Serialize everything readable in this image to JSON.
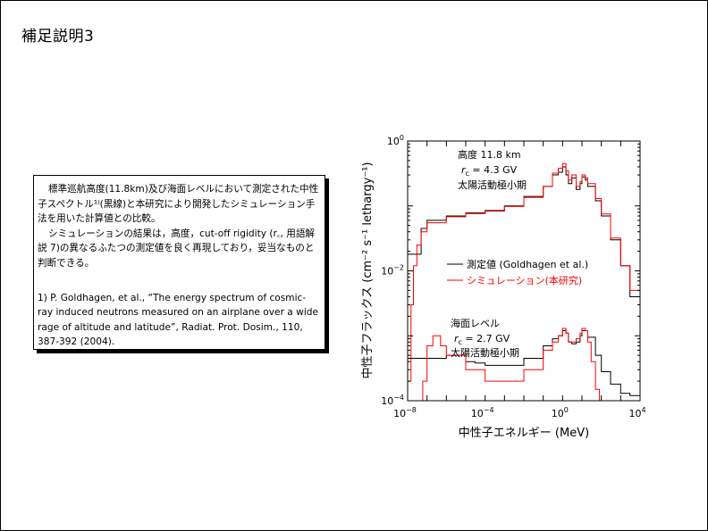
{
  "slide": {
    "title": "補足説明3"
  },
  "note": {
    "paragraph1": "標準巡航高度(11.8km)及び海面レベルにおいて測定された中性子スペクトル¹⁾(黒線)と本研究により開発したシミュレーション手法を用いた計算値との比較。",
    "paragraph2": "シミュレーションの結果は，高度，cut-off rigidity (r꜀, 用語解説 7)の異なるふたつの測定値を良く再現しており，妥当なものと判断できる。",
    "reference": "1) P. Goldhagen, et al., “The energy spectrum of cosmic-ray induced neutrons measured on an airplane over a wide rage of altitude and latitude”,  Radiat. Prot. Dosim., 110, 387-392 (2004)."
  },
  "chart_data": {
    "type": "line",
    "x_scale": "log",
    "y_scale": "log",
    "xlim": [
      1e-08,
      10000.0
    ],
    "ylim": [
      0.0001,
      1
    ],
    "xlabel": "中性子エネルギー (MeV)",
    "ylabel": "中性子フラックス (cm⁻² s⁻¹ lethargy⁻¹)",
    "x_ticks": [
      {
        "base": "10",
        "exp": "−8",
        "value": 1e-08
      },
      {
        "base": "10",
        "exp": "−4",
        "value": 0.0001
      },
      {
        "base": "10",
        "exp": "0",
        "value": 1
      },
      {
        "base": "10",
        "exp": "4",
        "value": 10000.0
      }
    ],
    "y_ticks": [
      {
        "base": "10",
        "exp": "−4",
        "value": 0.0001
      },
      {
        "base": "10",
        "exp": "−2",
        "value": 0.01
      },
      {
        "base": "10",
        "exp": "0",
        "value": 1
      }
    ],
    "legend": [
      {
        "label": "測定値 (Goldhagen et al.)",
        "color": "#000000"
      },
      {
        "label": "シミュレーション(本研究)",
        "color": "#ff0000"
      }
    ],
    "annotations": {
      "high": {
        "line1": "高度 11.8 km",
        "rc_symbol": "r",
        "rc_sub": "c",
        "rc_value": " = 4.3 GV",
        "line3": "太陽活動極小期"
      },
      "sea": {
        "line1": "海面レベル",
        "rc_symbol": "r",
        "rc_sub": "c",
        "rc_value": " = 2.7 GV",
        "line3": "太陽活動極小期"
      }
    },
    "series": [
      {
        "name": "測定値 (Goldhagen et al.)",
        "color": "#000000",
        "x": [
          1e-08,
          3e-08,
          5e-08,
          1e-07,
          1e-06,
          1e-05,
          0.0001,
          0.001,
          0.01,
          0.1,
          0.3,
          0.6,
          1,
          1.5,
          2,
          3,
          5,
          8,
          10,
          15,
          20,
          50,
          100,
          300,
          1000,
          3000,
          10000.0
        ],
        "y": [
          0.018,
          0.018,
          0.045,
          0.06,
          0.07,
          0.078,
          0.085,
          0.1,
          0.14,
          0.2,
          0.3,
          0.33,
          0.4,
          0.3,
          0.22,
          0.27,
          0.18,
          0.22,
          0.28,
          0.25,
          0.2,
          0.12,
          0.07,
          0.03,
          0.012,
          0.004,
          0.0015
        ]
      },
      {
        "name": "シミュレーション(本研究)",
        "color": "#ff0000",
        "x": [
          1e-08,
          1.5e-08,
          2e-08,
          3e-08,
          5e-08,
          1e-07,
          1e-06,
          1e-05,
          0.0001,
          0.001,
          0.01,
          0.1,
          0.3,
          0.6,
          1,
          1.5,
          2,
          3,
          5,
          8,
          10,
          15,
          20,
          50,
          100,
          300,
          1000,
          3000,
          10000.0
        ],
        "y": [
          0.0002,
          0.003,
          0.012,
          0.025,
          0.04,
          0.055,
          0.068,
          0.076,
          0.083,
          0.098,
          0.135,
          0.2,
          0.32,
          0.38,
          0.45,
          0.35,
          0.25,
          0.3,
          0.2,
          0.24,
          0.3,
          0.27,
          0.22,
          0.13,
          0.075,
          0.032,
          0.012,
          0.005,
          0.0018
        ]
      },
      {
        "name": "測定値 (Goldhagen et al.)",
        "color": "#000000",
        "x": [
          1e-08,
          1e-07,
          1e-06,
          1e-05,
          3e-05,
          0.0001,
          0.001,
          0.01,
          0.1,
          0.3,
          0.6,
          1,
          1.5,
          2,
          3,
          5,
          8,
          10,
          15,
          20,
          50,
          100,
          300,
          1000,
          3000,
          10000.0
        ],
        "y": [
          0.00045,
          0.00045,
          0.0005,
          0.0004,
          0.00038,
          0.00035,
          0.00035,
          0.00045,
          0.0007,
          0.0009,
          0.001,
          0.0012,
          0.0011,
          0.0008,
          0.00075,
          0.0008,
          0.001,
          0.0012,
          0.0012,
          0.00095,
          0.0005,
          0.00028,
          0.00018,
          0.00013,
          0.00012,
          0.00011
        ]
      },
      {
        "name": "シミュレーション(本研究)",
        "color": "#ff0000",
        "x": [
          1e-08,
          3e-08,
          6e-08,
          1e-07,
          2e-07,
          5e-07,
          1e-06,
          1e-05,
          0.0001,
          0.001,
          0.01,
          0.1,
          0.3,
          0.6,
          1,
          1.5,
          2,
          3,
          5,
          8,
          10,
          15,
          20,
          30,
          50,
          80
        ],
        "y": [
          0.0001,
          0.0001,
          0.0002,
          0.0007,
          0.001,
          0.0007,
          0.0005,
          0.0003,
          0.0002,
          0.0002,
          0.0003,
          0.0006,
          0.0008,
          0.001,
          0.0013,
          0.0011,
          0.0008,
          0.0008,
          0.0009,
          0.0011,
          0.0013,
          0.0012,
          0.0008,
          0.0004,
          0.00015,
          0.0001
        ]
      }
    ]
  }
}
